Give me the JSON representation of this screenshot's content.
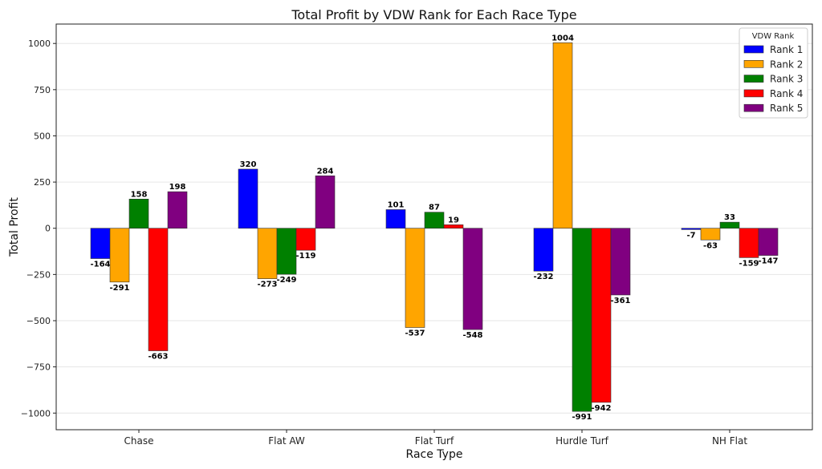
{
  "chart_data": {
    "type": "bar",
    "title": "Total Profit by VDW Rank for Each Race Type",
    "xlabel": "Race Type",
    "ylabel": "Total Profit",
    "categories": [
      "Chase",
      "Flat AW",
      "Flat Turf",
      "Hurdle Turf",
      "NH Flat"
    ],
    "ylim": [
      -1090,
      1105
    ],
    "yticks": [
      -1000,
      -750,
      -500,
      -250,
      0,
      250,
      500,
      750,
      1000
    ],
    "ytick_labels": [
      "−1000",
      "−750",
      "−500",
      "−250",
      "0",
      "250",
      "500",
      "750",
      "1000"
    ],
    "grid": true,
    "legend": {
      "title": "VDW Rank",
      "placement": "top-right"
    },
    "series": [
      {
        "name": "Rank 1",
        "color": "#0000ff",
        "values": [
          -164,
          320,
          101,
          -232,
          -7
        ]
      },
      {
        "name": "Rank 2",
        "color": "#ffa500",
        "values": [
          -291,
          -273,
          -537,
          1004,
          -63
        ]
      },
      {
        "name": "Rank 3",
        "color": "#008000",
        "values": [
          158,
          -249,
          87,
          -991,
          33
        ]
      },
      {
        "name": "Rank 4",
        "color": "#ff0000",
        "values": [
          -663,
          -119,
          19,
          -942,
          -159
        ]
      },
      {
        "name": "Rank 5",
        "color": "#800080",
        "values": [
          198,
          284,
          -548,
          -361,
          -147
        ]
      }
    ]
  }
}
